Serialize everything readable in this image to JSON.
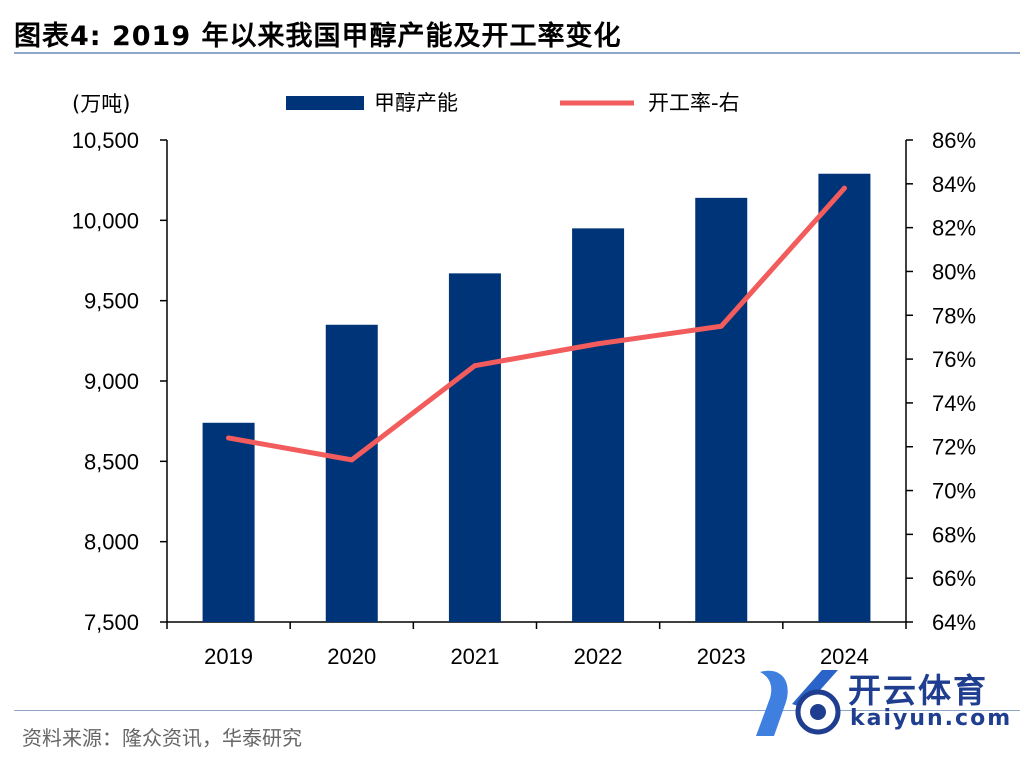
{
  "page": {
    "title": "图表4:   2019 年以来我国甲醇产能及开工率变化",
    "source": "资料来源：隆众资讯，华泰研究"
  },
  "watermark": {
    "brand": "开云体育",
    "domain": "kaiyun.com"
  },
  "colors": {
    "bar": "#003478",
    "line": "#f25c5c",
    "rule": "#8ea7c6"
  },
  "chart_data": {
    "type": "bar",
    "title": "2019 年以来我国甲醇产能及开工率变化",
    "categories": [
      "2019",
      "2020",
      "2021",
      "2022",
      "2023",
      "2024"
    ],
    "left_axis_unit": "(万吨)",
    "right_axis": true,
    "ylim": [
      7500,
      10500
    ],
    "y2lim": [
      0.64,
      0.86
    ],
    "y_ticks": [
      "7,500",
      "8,000",
      "8,500",
      "9,000",
      "9,500",
      "10,000",
      "10,500"
    ],
    "y_tick_values": [
      7500,
      8000,
      8500,
      9000,
      9500,
      10000,
      10500
    ],
    "y2_ticks": [
      "64%",
      "66%",
      "68%",
      "70%",
      "72%",
      "74%",
      "76%",
      "78%",
      "80%",
      "82%",
      "84%",
      "86%"
    ],
    "y2_tick_values": [
      0.64,
      0.66,
      0.68,
      0.7,
      0.72,
      0.74,
      0.76,
      0.78,
      0.8,
      0.82,
      0.84,
      0.86
    ],
    "series": [
      {
        "name": "甲醇产能",
        "type": "bar",
        "axis": "left",
        "values": [
          8740,
          9350,
          9670,
          9950,
          10140,
          10290
        ]
      },
      {
        "name": "开工率-右",
        "type": "line",
        "axis": "right",
        "values": [
          0.724,
          0.714,
          0.757,
          0.767,
          0.775,
          0.838
        ]
      }
    ]
  }
}
